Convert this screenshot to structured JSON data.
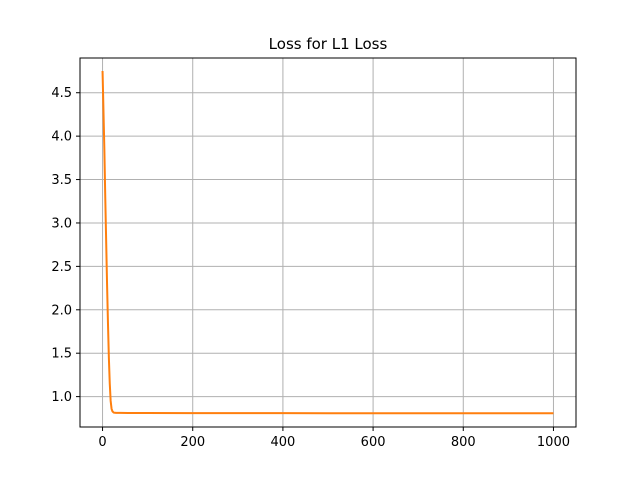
{
  "chart_data": {
    "type": "line",
    "title": "Loss for L1 Loss",
    "xlabel": "",
    "ylabel": "",
    "xlim": [
      -50,
      1050
    ],
    "ylim": [
      0.65,
      4.9
    ],
    "xticks": [
      0,
      200,
      400,
      600,
      800,
      1000
    ],
    "yticks": [
      1.0,
      1.5,
      2.0,
      2.5,
      3.0,
      3.5,
      4.0,
      4.5
    ],
    "xtick_labels": [
      "0",
      "200",
      "400",
      "600",
      "800",
      "1000"
    ],
    "ytick_labels": [
      "1.0",
      "1.5",
      "2.0",
      "2.5",
      "3.0",
      "3.5",
      "4.0",
      "4.5"
    ],
    "grid": true,
    "colors": {
      "series": "#ff7f0e",
      "grid": "#b0b0b0"
    },
    "series": [
      {
        "x": [
          0,
          2,
          4,
          6,
          8,
          10,
          12,
          14,
          16,
          18,
          20,
          22,
          25,
          30,
          40,
          60,
          100,
          200,
          300,
          400,
          500,
          600,
          700,
          800,
          900,
          1000
        ],
        "y": [
          4.75,
          4.3,
          3.85,
          3.3,
          2.8,
          2.3,
          1.85,
          1.45,
          1.15,
          0.95,
          0.86,
          0.83,
          0.815,
          0.812,
          0.812,
          0.811,
          0.811,
          0.81,
          0.81,
          0.81,
          0.809,
          0.809,
          0.808,
          0.808,
          0.808,
          0.808
        ]
      }
    ]
  }
}
